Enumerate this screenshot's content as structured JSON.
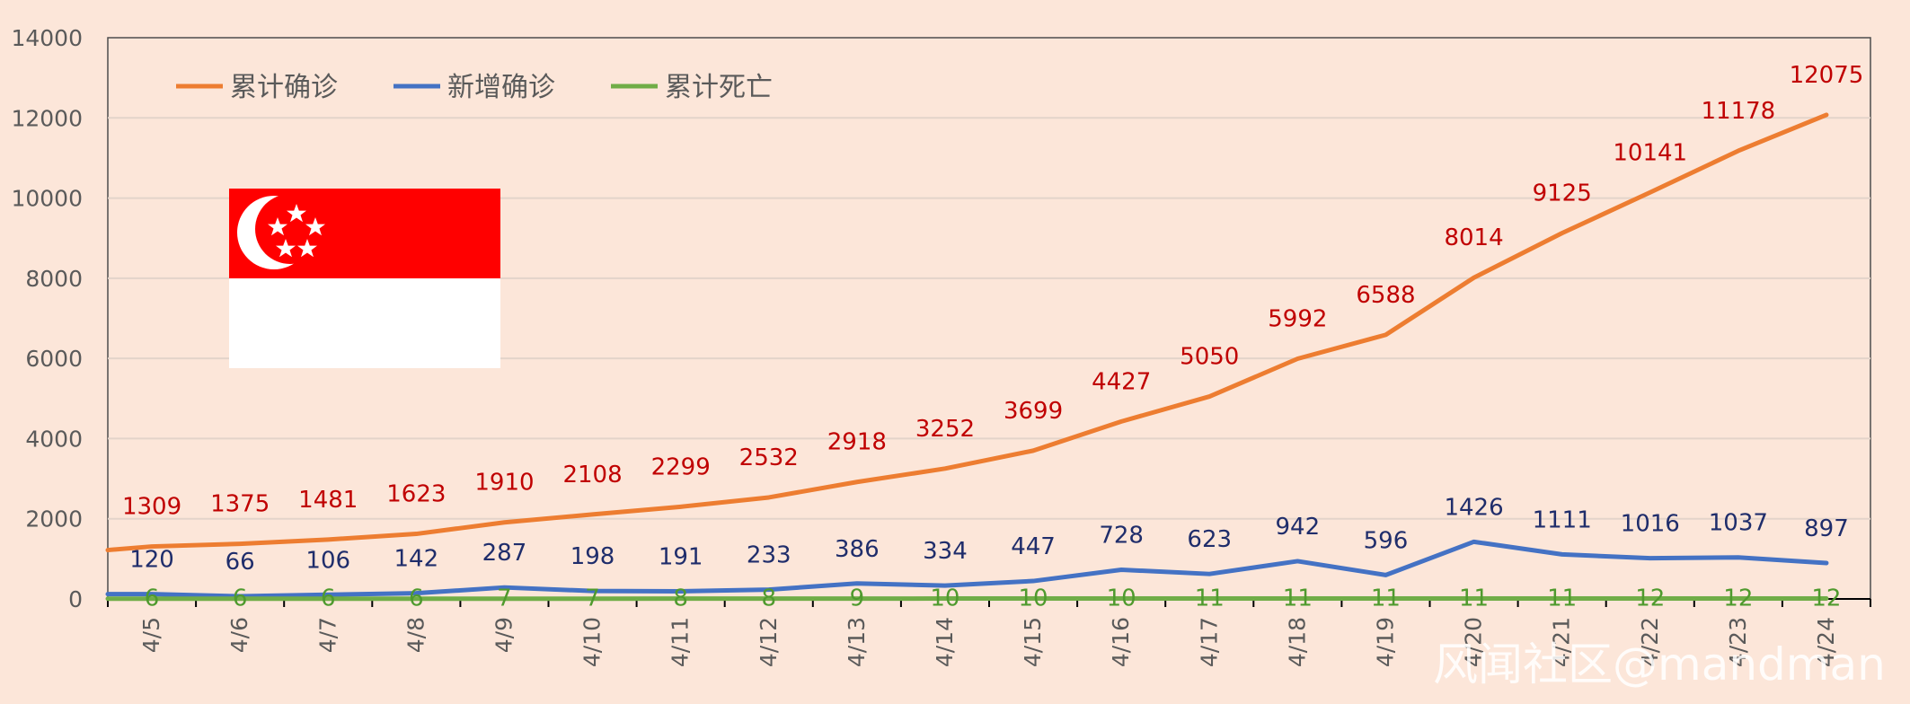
{
  "chart_data": {
    "type": "line",
    "categories": [
      "4/5",
      "4/6",
      "4/7",
      "4/8",
      "4/9",
      "4/10",
      "4/11",
      "4/12",
      "4/13",
      "4/14",
      "4/15",
      "4/16",
      "4/17",
      "4/18",
      "4/19",
      "4/20",
      "4/21",
      "4/22",
      "4/23",
      "4/24"
    ],
    "series": [
      {
        "name": "累计确诊",
        "color": "#ed7d31",
        "values": [
          1309,
          1375,
          1481,
          1623,
          1910,
          2108,
          2299,
          2532,
          2918,
          3252,
          3699,
          4427,
          5050,
          5992,
          6588,
          8014,
          9125,
          10141,
          11178,
          12075
        ]
      },
      {
        "name": "新增确诊",
        "color": "#4472c4",
        "values": [
          120,
          66,
          106,
          142,
          287,
          198,
          191,
          233,
          386,
          334,
          447,
          728,
          623,
          942,
          596,
          1426,
          1111,
          1016,
          1037,
          897
        ]
      },
      {
        "name": "累计死亡",
        "color": "#70ad47",
        "values": [
          6,
          6,
          6,
          6,
          7,
          7,
          8,
          8,
          9,
          10,
          10,
          10,
          11,
          11,
          11,
          11,
          11,
          12,
          12,
          12
        ]
      }
    ],
    "ylim": [
      0,
      14000
    ],
    "yticks": [
      0,
      2000,
      4000,
      6000,
      8000,
      10000,
      12000,
      14000
    ],
    "grid": true,
    "legend": "top-left",
    "data_label_colors": {
      "累计确诊": "#c00000",
      "新增确诊": "#1f2d6b",
      "累计死亡": "#4f9a2e"
    }
  },
  "flag": {
    "name": "singapore-flag",
    "colors": {
      "top": "#ff0000",
      "bottom": "#ffffff"
    }
  },
  "watermark": "风闻社区@mandman"
}
